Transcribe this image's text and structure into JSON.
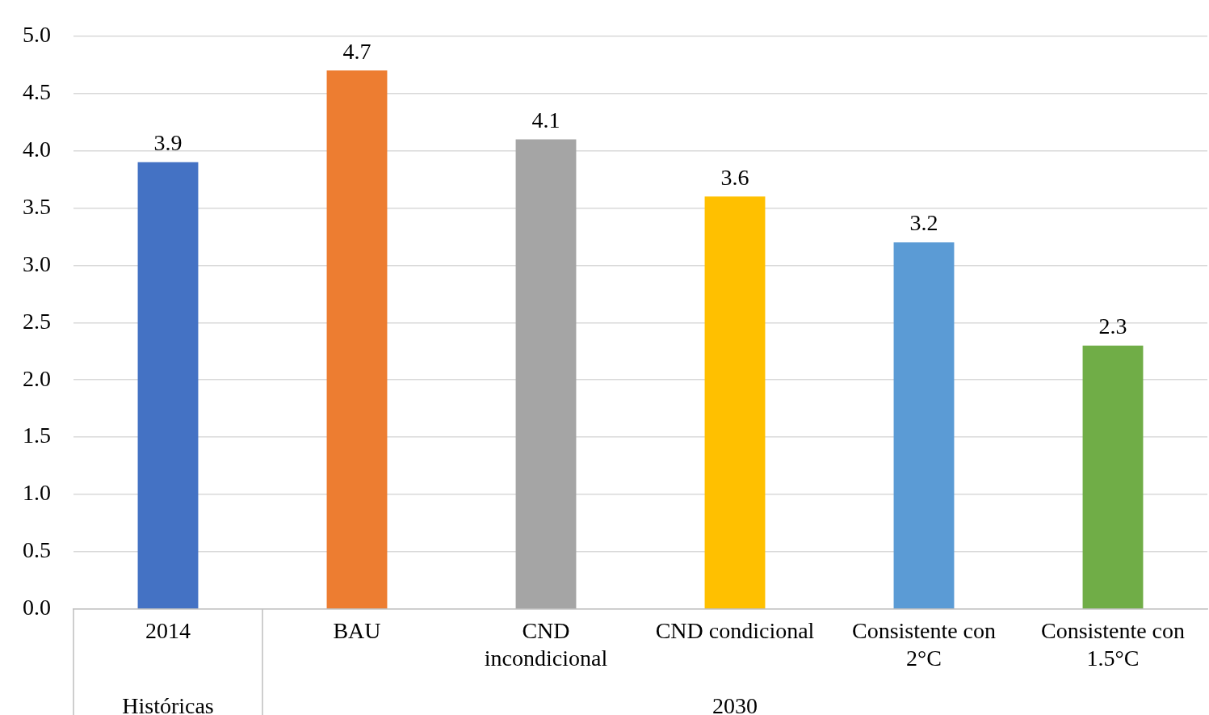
{
  "chart_data": {
    "type": "bar",
    "categories": [
      "2014",
      "BAU",
      "CND incondicional",
      "CND condicional",
      "Consistente con 2°C",
      "Consistente con 1.5°C"
    ],
    "values": [
      3.9,
      4.7,
      4.1,
      3.6,
      3.2,
      2.3
    ],
    "colors": [
      "#4472c4",
      "#ed7d31",
      "#a5a5a5",
      "#ffc000",
      "#5b9bd5",
      "#70ad47"
    ],
    "ylim": [
      0,
      5
    ],
    "yticks": [
      {
        "value": 0,
        "label": "0.0"
      },
      {
        "value": 0.5,
        "label": "0.5"
      },
      {
        "value": 1,
        "label": "1.0"
      },
      {
        "value": 1.5,
        "label": "1.5"
      },
      {
        "value": 2,
        "label": "2.0"
      },
      {
        "value": 2.5,
        "label": "2.5"
      },
      {
        "value": 3,
        "label": "3.0"
      },
      {
        "value": 3.5,
        "label": "3.5"
      },
      {
        "value": 4,
        "label": "4.0"
      },
      {
        "value": 4.5,
        "label": "4.5"
      },
      {
        "value": 5,
        "label": "5.0"
      }
    ],
    "grid": "y",
    "legend": false,
    "data_labels": true,
    "annotations": [
      "Históricas",
      "2030"
    ]
  }
}
